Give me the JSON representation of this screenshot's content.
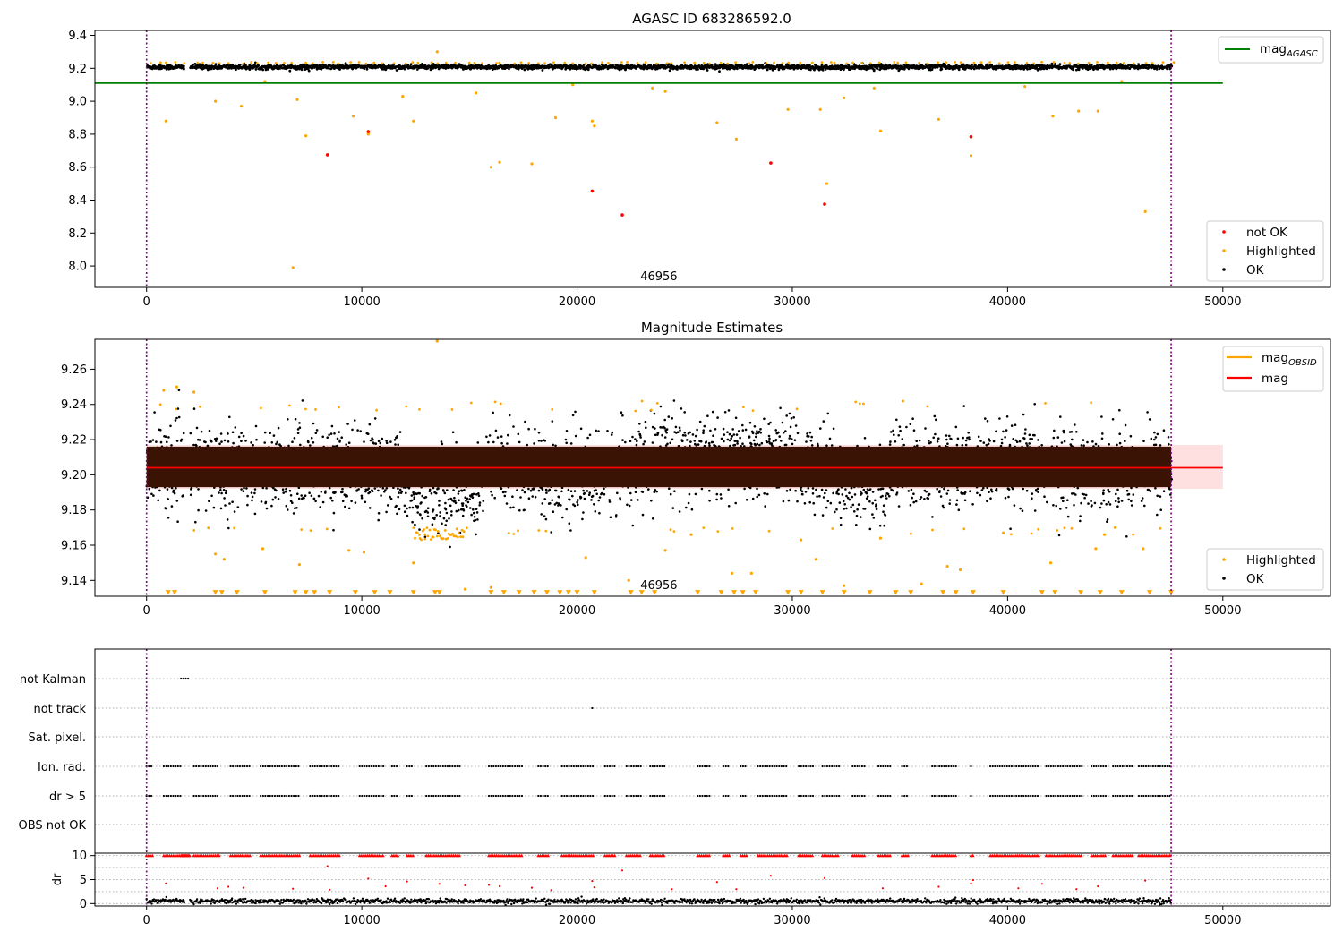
{
  "chart_data": [
    {
      "type": "scatter",
      "title": "AGASC ID 683286592.0",
      "xlim": [
        -2400,
        55000
      ],
      "ylim": [
        7.87,
        9.43
      ],
      "xticks": [
        0,
        10000,
        20000,
        30000,
        40000,
        50000
      ],
      "yticks": [
        8.0,
        8.2,
        8.4,
        8.6,
        8.8,
        9.0,
        9.2,
        9.4
      ],
      "ytick_decimals": 1,
      "annotation": "46956",
      "annotation_x": 23800,
      "obs_boundaries": [
        0,
        47600
      ],
      "hlines": [
        {
          "name": "mag_AGASC",
          "y": 9.11,
          "x_range": [
            -2400,
            50000
          ],
          "color": "#008000"
        }
      ],
      "ok_band": {
        "center": 9.208,
        "spread": 0.014,
        "x_end": 47600,
        "color": "#000000"
      },
      "series": [
        {
          "name": "not OK",
          "color": "#ff0000",
          "x": [
            8400,
            10300,
            20700,
            22100,
            29000,
            31500,
            38300
          ],
          "y": [
            8.675,
            8.815,
            8.455,
            8.31,
            8.625,
            8.375,
            8.785
          ]
        },
        {
          "name": "Highlighted",
          "color": "#ffa500",
          "x": [
            900,
            3200,
            4400,
            6800,
            7000,
            7400,
            9600,
            10300,
            11900,
            12400,
            16000,
            16400,
            17900,
            19000,
            20700,
            20800,
            23500,
            26500,
            27400,
            29800,
            31300,
            31600,
            32400,
            34100,
            36800,
            38300,
            42100,
            43300,
            44200,
            46400,
            13500,
            5500,
            15300,
            19800,
            24100,
            33800,
            40800,
            45300
          ],
          "y": [
            8.88,
            9.0,
            8.97,
            7.99,
            9.01,
            8.79,
            8.91,
            8.8,
            9.03,
            8.88,
            8.6,
            8.63,
            8.62,
            8.9,
            8.88,
            8.85,
            9.08,
            8.87,
            8.77,
            8.95,
            8.95,
            8.5,
            9.02,
            8.82,
            8.89,
            8.67,
            8.91,
            8.94,
            8.94,
            8.33,
            9.3,
            9.12,
            9.05,
            9.1,
            9.06,
            9.08,
            9.09,
            9.12
          ]
        },
        {
          "name": "OK",
          "color": "#000000",
          "x": [],
          "y": []
        }
      ],
      "legend": {
        "position": "right",
        "entries": [
          "not OK",
          "Highlighted",
          "OK"
        ],
        "line_entries": [
          "mag"
        ]
      },
      "legend_subscripts": {
        "mag_line": "AGASC"
      }
    },
    {
      "type": "scatter",
      "title": "Magnitude Estimates",
      "xlim": [
        -2400,
        55000
      ],
      "ylim": [
        9.131,
        9.277
      ],
      "xticks": [
        0,
        10000,
        20000,
        30000,
        40000,
        50000
      ],
      "yticks": [
        9.14,
        9.16,
        9.18,
        9.2,
        9.22,
        9.24,
        9.26
      ],
      "ytick_decimals": 2,
      "annotation": "46956",
      "annotation_x": 23800,
      "obs_boundaries": [
        0,
        47600
      ],
      "hlines": [
        {
          "name": "mag",
          "y": 9.204,
          "x_range": [
            0,
            50000
          ],
          "color": "#ff0000"
        }
      ],
      "shaded_band": {
        "y_low": 9.192,
        "y_high": 9.217,
        "x_range": [
          0,
          50000
        ],
        "color": "#ff0000"
      },
      "dark_band": {
        "y_low": 9.193,
        "y_high": 9.216,
        "x_range": [
          0,
          47600
        ],
        "color": "#3a1305"
      },
      "ok_scatter": {
        "center": 9.204,
        "spread": 0.021,
        "color": "#000000"
      },
      "series": [
        {
          "name": "Highlighted",
          "color": "#ffa500",
          "x": [
            13500,
            800,
            1400,
            2200,
            3200,
            3600,
            5400,
            7100,
            9400,
            10100,
            12400,
            14800,
            16000,
            20400,
            22400,
            24100,
            25300,
            27200,
            28100,
            30400,
            31100,
            32400,
            34100,
            36000,
            37200,
            37800,
            39800,
            42000,
            44100,
            44500,
            45000,
            46300
          ],
          "y": [
            9.276,
            9.248,
            9.25,
            9.247,
            9.155,
            9.152,
            9.158,
            9.149,
            9.157,
            9.156,
            9.15,
            9.135,
            9.136,
            9.153,
            9.14,
            9.157,
            9.166,
            9.144,
            9.144,
            9.163,
            9.152,
            9.137,
            9.164,
            9.138,
            9.148,
            9.146,
            9.167,
            9.15,
            9.158,
            9.166,
            9.17,
            9.158
          ]
        },
        {
          "name": "OK",
          "color": "#000000",
          "x": [],
          "y": []
        }
      ],
      "floor_markers": {
        "y": 9.133,
        "color": "#ffa500",
        "x": [
          1000,
          1300,
          3200,
          3500,
          4200,
          5500,
          6900,
          7400,
          7800,
          8500,
          9700,
          10600,
          11300,
          12400,
          13400,
          13600,
          16000,
          16600,
          17300,
          18000,
          18600,
          19200,
          19600,
          20000,
          20800,
          22500,
          23000,
          23600,
          25600,
          26700,
          27300,
          27700,
          28300,
          29800,
          30400,
          31400,
          32400,
          33600,
          34800,
          35500,
          37000,
          37600,
          38400,
          39800,
          41600,
          42200,
          43400,
          44300,
          45300,
          46600,
          47600
        ]
      },
      "legend": {
        "position": "right",
        "entries": [
          "Highlighted",
          "OK"
        ],
        "line_entries": [
          "mag",
          "mag"
        ]
      },
      "legend_subscripts": {
        "mag_obsid": "OBSID"
      }
    },
    {
      "type": "scatter",
      "title": "",
      "xlim": [
        -2400,
        55000
      ],
      "xticks": [
        0,
        10000,
        20000,
        30000,
        40000,
        50000
      ],
      "obs_boundaries": [
        0,
        47600
      ],
      "flag_labels": [
        "not Kalman",
        "not track",
        "Sat. pixel.",
        "Ion. rad.",
        "dr > 5",
        "OBS not OK"
      ],
      "flag_segments": {
        "not Kalman": [
          [
            1600,
            2000
          ]
        ],
        "not track": [
          [
            20700,
            20750
          ]
        ],
        "Sat. pixel.": [],
        "Ion. rad.": [
          [
            0,
            300
          ],
          [
            800,
            1600
          ],
          [
            2200,
            3400
          ],
          [
            3900,
            4800
          ],
          [
            5300,
            7100
          ],
          [
            7600,
            9000
          ],
          [
            9900,
            11000
          ],
          [
            11400,
            11700
          ],
          [
            12100,
            12400
          ],
          [
            13000,
            14600
          ],
          [
            15900,
            17500
          ],
          [
            18200,
            18700
          ],
          [
            19300,
            20800
          ],
          [
            21300,
            21800
          ],
          [
            22300,
            23000
          ],
          [
            23400,
            24100
          ],
          [
            25600,
            26200
          ],
          [
            26800,
            27100
          ],
          [
            27600,
            27900
          ],
          [
            28400,
            29800
          ],
          [
            30300,
            31000
          ],
          [
            31400,
            32200
          ],
          [
            32800,
            33400
          ],
          [
            34000,
            34600
          ],
          [
            35100,
            35400
          ],
          [
            36500,
            37600
          ],
          [
            38300,
            38400
          ],
          [
            39200,
            41500
          ],
          [
            41800,
            43500
          ],
          [
            43900,
            44600
          ],
          [
            44900,
            45800
          ],
          [
            46100,
            47600
          ]
        ],
        "dr > 5": [
          [
            0,
            300
          ],
          [
            800,
            1600
          ],
          [
            2200,
            3400
          ],
          [
            3900,
            4800
          ],
          [
            5300,
            7100
          ],
          [
            7600,
            9000
          ],
          [
            9900,
            11000
          ],
          [
            11400,
            11700
          ],
          [
            12100,
            12400
          ],
          [
            13000,
            14600
          ],
          [
            15900,
            17500
          ],
          [
            18200,
            18700
          ],
          [
            19300,
            20800
          ],
          [
            21300,
            21800
          ],
          [
            22300,
            23000
          ],
          [
            23400,
            24100
          ],
          [
            25600,
            26200
          ],
          [
            26800,
            27100
          ],
          [
            27600,
            27900
          ],
          [
            28400,
            29800
          ],
          [
            30300,
            31000
          ],
          [
            31400,
            32200
          ],
          [
            32800,
            33400
          ],
          [
            34000,
            34600
          ],
          [
            35100,
            35400
          ],
          [
            36500,
            37600
          ],
          [
            38300,
            38400
          ],
          [
            39200,
            41500
          ],
          [
            41800,
            43500
          ],
          [
            43900,
            44600
          ],
          [
            44900,
            45800
          ],
          [
            46100,
            47600
          ]
        ],
        "OBS not OK": []
      },
      "dr_panel": {
        "ylabel": "dr",
        "ylim": [
          -0.5,
          10.5
        ],
        "yticks": [
          0,
          5,
          10
        ],
        "red_x": [
          900,
          3300,
          3800,
          4500,
          6800,
          8400,
          8500,
          10300,
          11100,
          12100,
          13600,
          14800,
          15900,
          16400,
          17900,
          18800,
          20700,
          20800,
          22100,
          24400,
          26500,
          27400,
          29000,
          31500,
          34200,
          36800,
          38300,
          38400,
          40500,
          41600,
          43200,
          44200,
          46400
        ],
        "red_y": [
          4.2,
          3.2,
          3.5,
          3.3,
          3.1,
          7.8,
          2.9,
          5.2,
          3.6,
          4.6,
          4.1,
          3.8,
          3.9,
          3.6,
          3.3,
          2.8,
          4.7,
          3.4,
          6.9,
          3.0,
          4.5,
          3.0,
          5.8,
          5.3,
          3.2,
          3.5,
          4.2,
          4.9,
          3.2,
          4.1,
          3.0,
          3.6,
          4.8
        ],
        "floor_level": 0.5
      }
    }
  ]
}
